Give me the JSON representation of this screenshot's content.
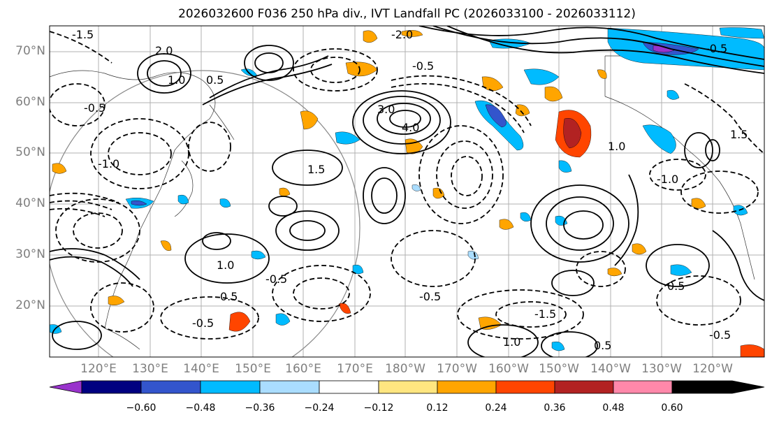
{
  "title": "2026032600 F036 250 hPa div., IVT Landfall PC (2026033100 - 2026033112)",
  "lat_labels": [
    "70°N",
    "60°N",
    "50°N",
    "40°N",
    "30°N",
    "20°N"
  ],
  "lon_labels": [
    "120°E",
    "130°E",
    "140°E",
    "150°E",
    "160°E",
    "170°E",
    "180°W",
    "170°W",
    "160°W",
    "150°W",
    "140°W",
    "130°W",
    "120°W"
  ],
  "colorbar": {
    "ticks": [
      "−0.60",
      "−0.48",
      "−0.36",
      "−0.24",
      "−0.12",
      "0.12",
      "0.24",
      "0.36",
      "0.48",
      "0.60"
    ],
    "colors": [
      "#9933cc",
      "#000080",
      "#3355cc",
      "#00bbff",
      "#aaddff",
      "#ffffff",
      "#ffe680",
      "#ffa500",
      "#ff4500",
      "#b22222",
      "#ff88aa"
    ]
  },
  "contour_labels": [
    {
      "text": "-1.5"
    },
    {
      "text": "-2.0"
    },
    {
      "text": "2.0"
    },
    {
      "text": "-0.5"
    },
    {
      "text": "0.5"
    },
    {
      "text": "-1.0"
    },
    {
      "text": "1.5"
    },
    {
      "text": "3.0"
    },
    {
      "text": "4.0"
    },
    {
      "text": "1.0"
    },
    {
      "text": "-0.5"
    },
    {
      "text": "1.0"
    },
    {
      "text": "0.5"
    },
    {
      "text": "-1.5"
    },
    {
      "text": "-0.5"
    },
    {
      "text": "0.5"
    },
    {
      "text": "-1.0"
    },
    {
      "text": "1.0"
    },
    {
      "text": "-0.5"
    },
    {
      "text": "0.5"
    },
    {
      "text": "-0.5"
    },
    {
      "text": "1.5"
    },
    {
      "text": "-0.5"
    },
    {
      "text": "1.0"
    },
    {
      "text": "-0.5"
    }
  ]
}
